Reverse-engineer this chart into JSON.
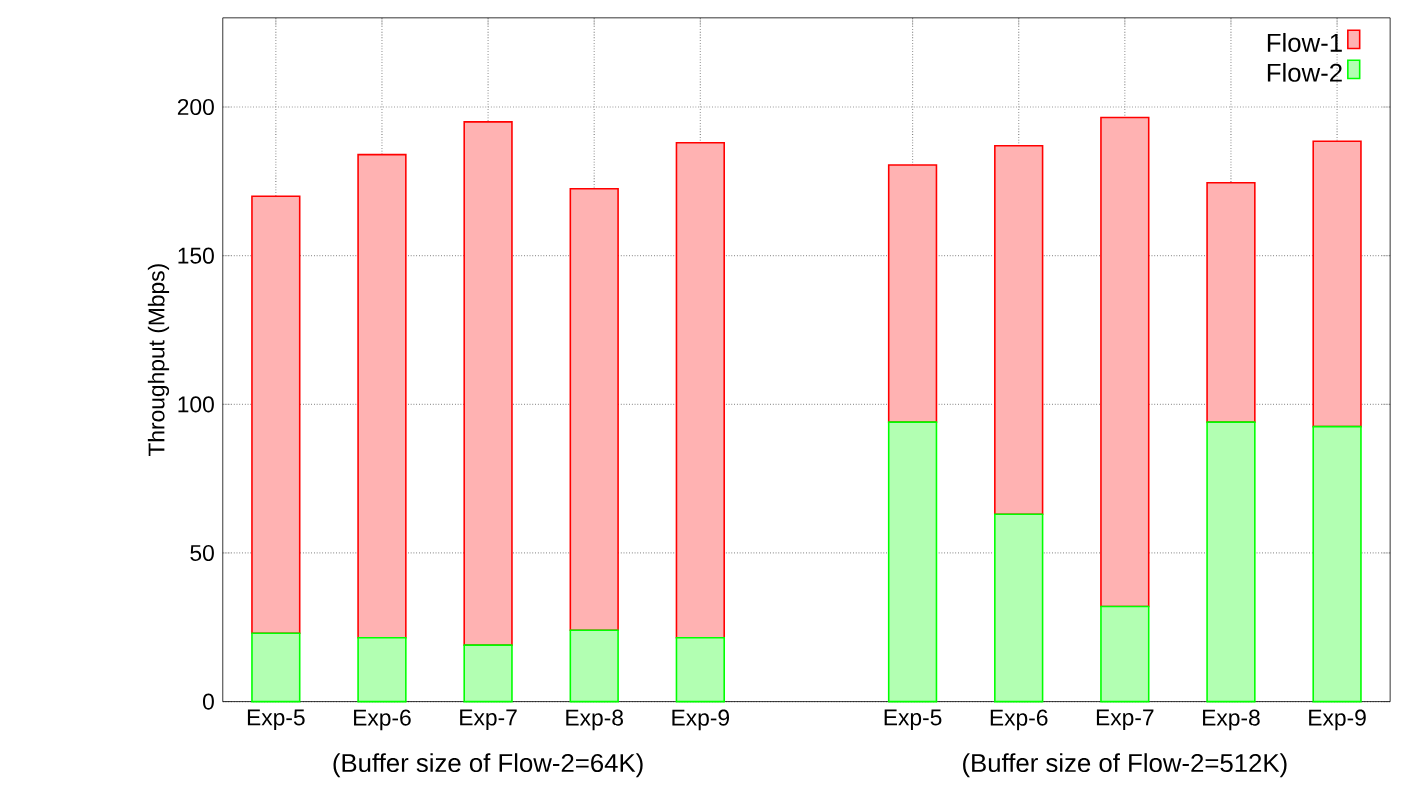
{
  "chart_data": {
    "type": "bar",
    "stacked": true,
    "ylabel": "Throughput (Mbps)",
    "categories": [
      "Exp-5",
      "Exp-6",
      "Exp-7",
      "Exp-8",
      "Exp-9",
      null,
      "Exp-5",
      "Exp-6",
      "Exp-7",
      "Exp-8",
      "Exp-9"
    ],
    "series": [
      {
        "name": "Flow-2",
        "color": "#00ff00",
        "values": [
          23,
          21.5,
          19,
          24,
          21.5,
          null,
          94,
          63,
          32,
          94,
          92.5
        ]
      },
      {
        "name": "Flow-1",
        "color": "#ff0000",
        "values": [
          147,
          162.5,
          176,
          148.5,
          166.5,
          null,
          86.5,
          124,
          164.5,
          80.5,
          96
        ]
      }
    ],
    "annotations": [
      "(Buffer size of Flow-2=64K)",
      "(Buffer size of Flow-2=512K)"
    ],
    "ylim": [
      0,
      230
    ],
    "yticks": [
      0,
      50,
      100,
      150,
      200
    ],
    "grid": true,
    "legend": "top right"
  }
}
